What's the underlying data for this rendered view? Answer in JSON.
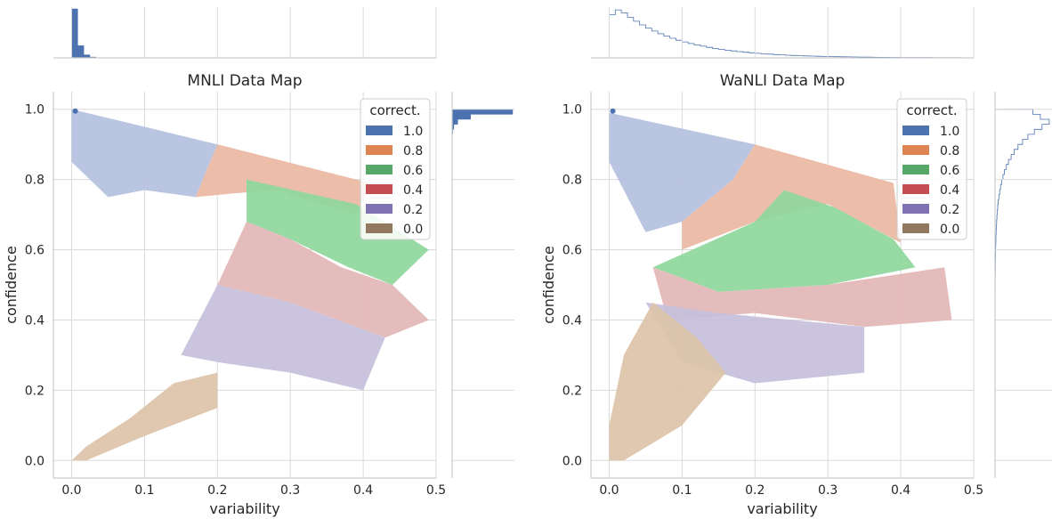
{
  "chart_data": [
    {
      "type": "heatmap",
      "title": "MNLI Data Map",
      "xlabel": "variability",
      "ylabel": "confidence",
      "xlim": [
        -0.025,
        0.5
      ],
      "ylim": [
        -0.05,
        1.05
      ],
      "xticks": [
        "0.0",
        "0.1",
        "0.2",
        "0.3",
        "0.4",
        "0.5"
      ],
      "yticks": [
        "0.0",
        "0.2",
        "0.4",
        "0.6",
        "0.8",
        "1.0"
      ],
      "grid": true,
      "legend": {
        "title": "correct.",
        "placement": "top-right",
        "entries": [
          "1.0",
          "0.8",
          "0.6",
          "0.4",
          "0.2",
          "0.0"
        ]
      },
      "regions": [
        {
          "correctness": "1.0",
          "color": "#b4c0e0",
          "points": [
            [
              0.0,
              1.0
            ],
            [
              0.2,
              0.9
            ],
            [
              0.17,
              0.75
            ],
            [
              0.1,
              0.77
            ],
            [
              0.05,
              0.75
            ],
            [
              0.0,
              0.85
            ]
          ]
        },
        {
          "correctness": "0.8",
          "color": "#eab9a3",
          "points": [
            [
              0.2,
              0.9
            ],
            [
              0.41,
              0.79
            ],
            [
              0.39,
              0.7
            ],
            [
              0.28,
              0.77
            ],
            [
              0.22,
              0.76
            ],
            [
              0.17,
              0.75
            ]
          ]
        },
        {
          "correctness": "0.6",
          "color": "#8ed79c",
          "points": [
            [
              0.24,
              0.8
            ],
            [
              0.39,
              0.73
            ],
            [
              0.49,
              0.6
            ],
            [
              0.44,
              0.5
            ],
            [
              0.38,
              0.55
            ],
            [
              0.3,
              0.63
            ],
            [
              0.24,
              0.68
            ]
          ]
        },
        {
          "correctness": "0.4",
          "color": "#e3b6b6",
          "points": [
            [
              0.24,
              0.68
            ],
            [
              0.3,
              0.63
            ],
            [
              0.37,
              0.55
            ],
            [
              0.44,
              0.5
            ],
            [
              0.49,
              0.4
            ],
            [
              0.43,
              0.35
            ],
            [
              0.3,
              0.45
            ],
            [
              0.2,
              0.5
            ]
          ]
        },
        {
          "correctness": "0.2",
          "color": "#c5bfdb",
          "points": [
            [
              0.2,
              0.5
            ],
            [
              0.3,
              0.45
            ],
            [
              0.43,
              0.35
            ],
            [
              0.4,
              0.2
            ],
            [
              0.3,
              0.25
            ],
            [
              0.2,
              0.28
            ],
            [
              0.15,
              0.3
            ]
          ]
        },
        {
          "correctness": "0.0",
          "color": "#dcc3a8",
          "points": [
            [
              0.0,
              0.0
            ],
            [
              0.02,
              0.0
            ],
            [
              0.1,
              0.07
            ],
            [
              0.2,
              0.15
            ],
            [
              0.2,
              0.25
            ],
            [
              0.14,
              0.22
            ],
            [
              0.08,
              0.12
            ],
            [
              0.02,
              0.04
            ]
          ]
        }
      ],
      "marginal_x": {
        "orientation": "top",
        "style": "filled",
        "color": "#4c72b0",
        "peak_at": 0.0,
        "decay": 0.006
      },
      "marginal_y": {
        "orientation": "right",
        "style": "filled",
        "color": "#4c72b0",
        "peak_at": 1.0,
        "decay": 0.012
      }
    },
    {
      "type": "heatmap",
      "title": "WaNLI Data Map",
      "xlabel": "variability",
      "ylabel": "confidence",
      "xlim": [
        -0.025,
        0.5
      ],
      "ylim": [
        -0.05,
        1.05
      ],
      "xticks": [
        "0.0",
        "0.1",
        "0.2",
        "0.3",
        "0.4",
        "0.5"
      ],
      "yticks": [
        "0.0",
        "0.2",
        "0.4",
        "0.6",
        "0.8",
        "1.0"
      ],
      "grid": true,
      "legend": {
        "title": "correct.",
        "placement": "top-right",
        "entries": [
          "1.0",
          "0.8",
          "0.6",
          "0.4",
          "0.2",
          "0.0"
        ]
      },
      "regions": [
        {
          "correctness": "1.0",
          "color": "#b4c0e0",
          "points": [
            [
              0.0,
              0.99
            ],
            [
              0.2,
              0.9
            ],
            [
              0.17,
              0.8
            ],
            [
              0.1,
              0.68
            ],
            [
              0.05,
              0.65
            ],
            [
              0.0,
              0.85
            ]
          ]
        },
        {
          "correctness": "0.8",
          "color": "#eab9a3",
          "points": [
            [
              0.2,
              0.9
            ],
            [
              0.39,
              0.79
            ],
            [
              0.4,
              0.62
            ],
            [
              0.3,
              0.73
            ],
            [
              0.2,
              0.68
            ],
            [
              0.1,
              0.6
            ],
            [
              0.1,
              0.68
            ],
            [
              0.17,
              0.8
            ]
          ]
        },
        {
          "correctness": "0.6",
          "color": "#8ed79c",
          "points": [
            [
              0.06,
              0.55
            ],
            [
              0.2,
              0.68
            ],
            [
              0.24,
              0.77
            ],
            [
              0.31,
              0.72
            ],
            [
              0.39,
              0.63
            ],
            [
              0.42,
              0.55
            ],
            [
              0.3,
              0.5
            ],
            [
              0.15,
              0.48
            ]
          ]
        },
        {
          "correctness": "0.4",
          "color": "#e3b6b6",
          "points": [
            [
              0.06,
              0.55
            ],
            [
              0.15,
              0.48
            ],
            [
              0.3,
              0.5
            ],
            [
              0.46,
              0.55
            ],
            [
              0.47,
              0.4
            ],
            [
              0.35,
              0.38
            ],
            [
              0.2,
              0.42
            ],
            [
              0.08,
              0.4
            ]
          ]
        },
        {
          "correctness": "0.2",
          "color": "#c5bfdb",
          "points": [
            [
              0.05,
              0.45
            ],
            [
              0.15,
              0.42
            ],
            [
              0.35,
              0.38
            ],
            [
              0.35,
              0.25
            ],
            [
              0.2,
              0.22
            ],
            [
              0.1,
              0.28
            ]
          ]
        },
        {
          "correctness": "0.0",
          "color": "#dcc3a8",
          "points": [
            [
              0.0,
              0.0
            ],
            [
              0.02,
              0.0
            ],
            [
              0.1,
              0.1
            ],
            [
              0.16,
              0.25
            ],
            [
              0.12,
              0.35
            ],
            [
              0.06,
              0.45
            ],
            [
              0.02,
              0.3
            ],
            [
              0.0,
              0.1
            ]
          ]
        }
      ],
      "marginal_x": {
        "orientation": "top",
        "style": "step",
        "color": "#4c72b0",
        "peak_at": 0.01,
        "decay": 0.08
      },
      "marginal_y": {
        "orientation": "right",
        "style": "step",
        "color": "#4c72b0",
        "peak_at": 0.97,
        "decay": 0.08
      }
    }
  ],
  "legend_colors": {
    "1.0": "#4c72b0",
    "0.8": "#dd8452",
    "0.6": "#55a868",
    "0.4": "#c44e52",
    "0.2": "#8172b3",
    "0.0": "#937860"
  },
  "grid_color": "#dadada",
  "spine_color": "#cccccc"
}
